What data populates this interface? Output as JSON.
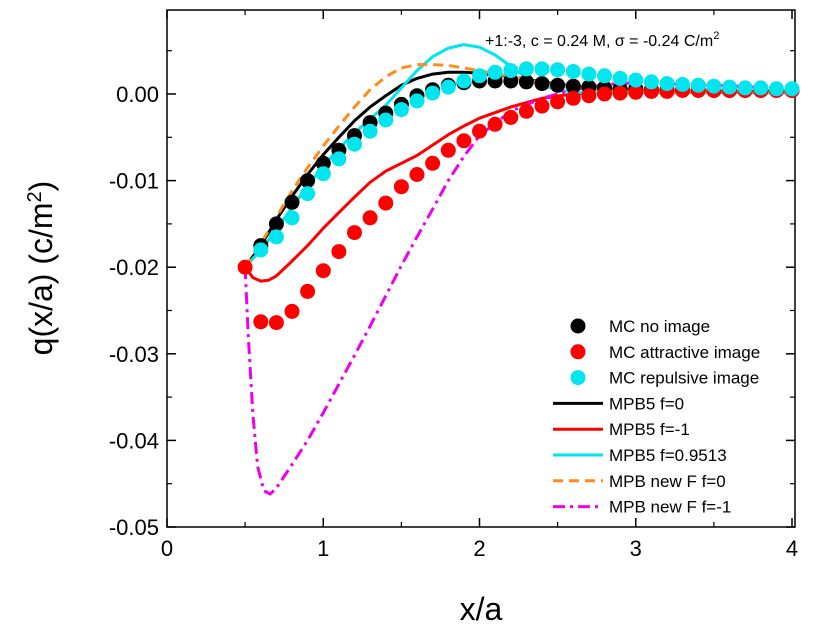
{
  "chart_data": {
    "type": "line",
    "title": "",
    "annotation": {
      "prefix": "+1:-3, c = 0.24 M, ",
      "sigma": "σ",
      "middle": " = -0.24 C/m",
      "sup": "2"
    },
    "xlabel": "x/a",
    "ylabel": {
      "main": "q(x/a) (c/m",
      "sup": "2",
      "end": ")"
    },
    "xlim": [
      0,
      4
    ],
    "ylim": [
      -0.05,
      0.008
    ],
    "xticks": [
      0,
      1,
      2,
      3,
      4
    ],
    "xtick_labels": [
      "0",
      "1",
      "2",
      "3",
      "4"
    ],
    "yticks": [
      0.0,
      -0.01,
      -0.02,
      -0.03,
      -0.04,
      -0.05
    ],
    "ytick_labels": [
      "0.00",
      "-0.01",
      "-0.02",
      "-0.03",
      "-0.04",
      "-0.05"
    ],
    "legend_position": "bottom-right",
    "series": [
      {
        "name": "MC no image",
        "kind": "scatter",
        "color": "#000000",
        "x": [
          0.6,
          0.7,
          0.8,
          0.9,
          1.0,
          1.1,
          1.2,
          1.3,
          1.4,
          1.5,
          1.6,
          1.7,
          1.8,
          1.9,
          2.0,
          2.1,
          2.2,
          2.3,
          2.4,
          2.5,
          2.6,
          2.7,
          2.8,
          2.9,
          3.0,
          3.1,
          3.2,
          3.3,
          3.4,
          3.5,
          3.6,
          3.7,
          3.8,
          3.9,
          4.0
        ],
        "y": [
          -0.0175,
          -0.015,
          -0.0125,
          -0.01,
          -0.008,
          -0.0065,
          -0.0048,
          -0.0033,
          -0.0022,
          -0.0012,
          -0.0002,
          0.0005,
          0.001,
          0.0013,
          0.0015,
          0.0015,
          0.0015,
          0.0014,
          0.0012,
          0.001,
          0.0009,
          0.0008,
          0.0007,
          0.0006,
          0.0006,
          0.0005,
          0.0005,
          0.0005,
          0.0005,
          0.0004,
          0.0004,
          0.0004,
          0.0004,
          0.0004,
          0.0004
        ]
      },
      {
        "name": "MC attractive image",
        "kind": "scatter",
        "color": "#ff0000",
        "x": [
          0.5,
          0.6,
          0.7,
          0.8,
          0.9,
          1.0,
          1.1,
          1.2,
          1.3,
          1.4,
          1.5,
          1.6,
          1.7,
          1.8,
          1.9,
          2.0,
          2.1,
          2.2,
          2.3,
          2.4,
          2.5,
          2.6,
          2.7,
          2.8,
          2.9,
          3.0,
          3.1,
          3.2,
          3.3,
          3.4,
          3.5,
          3.6,
          3.7,
          3.8,
          3.9,
          4.0
        ],
        "y": [
          -0.02,
          -0.0263,
          -0.0264,
          -0.0251,
          -0.0228,
          -0.0204,
          -0.0182,
          -0.016,
          -0.0143,
          -0.0126,
          -0.0107,
          -0.0093,
          -0.008,
          -0.0065,
          -0.0054,
          -0.0043,
          -0.0035,
          -0.0027,
          -0.002,
          -0.0014,
          -0.0009,
          -0.0005,
          -0.0002,
          0.0,
          0.0001,
          0.0002,
          0.0003,
          0.0003,
          0.0004,
          0.0004,
          0.0004,
          0.0004,
          0.0004,
          0.0004,
          0.0004,
          0.0004
        ]
      },
      {
        "name": "MC repulsive image",
        "kind": "scatter",
        "color": "#00e5ee",
        "x": [
          0.6,
          0.7,
          0.8,
          0.9,
          1.0,
          1.1,
          1.2,
          1.3,
          1.4,
          1.5,
          1.6,
          1.7,
          1.8,
          1.9,
          2.0,
          2.1,
          2.2,
          2.3,
          2.4,
          2.5,
          2.6,
          2.7,
          2.8,
          2.9,
          3.0,
          3.1,
          3.2,
          3.3,
          3.4,
          3.5,
          3.6,
          3.7,
          3.8,
          3.9,
          4.0
        ],
        "y": [
          -0.018,
          -0.0165,
          -0.0143,
          -0.0115,
          -0.0092,
          -0.0075,
          -0.0058,
          -0.0043,
          -0.003,
          -0.0018,
          -0.0008,
          0.0001,
          0.0008,
          0.0015,
          0.0021,
          0.0025,
          0.0027,
          0.0029,
          0.0029,
          0.0028,
          0.0026,
          0.0023,
          0.0021,
          0.0018,
          0.0016,
          0.0014,
          0.0012,
          0.0011,
          0.001,
          0.0009,
          0.0008,
          0.0007,
          0.0007,
          0.0006,
          0.0006
        ]
      },
      {
        "name": "MPB5 f=0",
        "kind": "line",
        "dash": "solid",
        "color": "#000000",
        "x": [
          0.5,
          0.6,
          0.7,
          0.8,
          0.9,
          1.0,
          1.1,
          1.2,
          1.3,
          1.4,
          1.5,
          1.6,
          1.7,
          1.8,
          1.9,
          2.0,
          2.2,
          2.4,
          2.6,
          2.8,
          3.0,
          3.5,
          4.0
        ],
        "y": [
          -0.02,
          -0.0175,
          -0.0145,
          -0.0118,
          -0.0093,
          -0.007,
          -0.005,
          -0.0031,
          -0.0015,
          -0.0002,
          0.001,
          0.0018,
          0.0023,
          0.0025,
          0.0025,
          0.0024,
          0.002,
          0.0014,
          0.0009,
          0.0006,
          0.0004,
          0.0002,
          0.0002
        ]
      },
      {
        "name": "MPB5 f=-1",
        "kind": "line",
        "dash": "solid",
        "color": "#ff0000",
        "x": [
          0.5,
          0.55,
          0.6,
          0.65,
          0.7,
          0.8,
          0.9,
          1.0,
          1.1,
          1.2,
          1.3,
          1.4,
          1.5,
          1.6,
          1.7,
          1.8,
          1.9,
          2.0,
          2.2,
          2.4,
          2.6,
          2.8,
          3.0,
          3.5,
          4.0
        ],
        "y": [
          -0.02,
          -0.0212,
          -0.0216,
          -0.0215,
          -0.021,
          -0.0193,
          -0.0175,
          -0.0155,
          -0.0137,
          -0.0119,
          -0.0102,
          -0.0089,
          -0.008,
          -0.0071,
          -0.0059,
          -0.0047,
          -0.0037,
          -0.0028,
          -0.0015,
          -0.0005,
          0.0,
          0.0002,
          0.0003,
          0.0003,
          0.0003
        ]
      },
      {
        "name": "MPB5 f=0.9513",
        "kind": "line",
        "dash": "solid",
        "color": "#00e5ee",
        "x": [
          0.5,
          0.6,
          0.7,
          0.8,
          0.9,
          1.0,
          1.1,
          1.2,
          1.3,
          1.4,
          1.5,
          1.6,
          1.7,
          1.8,
          1.9,
          2.0,
          2.1,
          2.2,
          2.3,
          2.4,
          2.5,
          2.6,
          2.8,
          3.0,
          3.5,
          4.0
        ],
        "y": [
          -0.02,
          -0.018,
          -0.0157,
          -0.0131,
          -0.0106,
          -0.0083,
          -0.0063,
          -0.0045,
          -0.0029,
          -0.0013,
          0.0007,
          0.0027,
          0.0043,
          0.0053,
          0.0057,
          0.0054,
          0.0045,
          0.0032,
          0.0019,
          0.001,
          0.0005,
          0.0002,
          0.0001,
          0.0001,
          0.0002,
          0.0002
        ]
      },
      {
        "name": "MPB new F f=0",
        "kind": "line",
        "dash": "dash",
        "color": "#ff8c1a",
        "x": [
          0.5,
          0.6,
          0.7,
          0.8,
          0.9,
          1.0,
          1.1,
          1.2,
          1.3,
          1.4,
          1.5,
          1.6,
          1.7,
          1.8,
          1.9,
          2.0,
          2.2,
          2.4,
          2.6,
          2.8,
          3.0,
          3.5,
          4.0
        ],
        "y": [
          -0.02,
          -0.0173,
          -0.0142,
          -0.0112,
          -0.0085,
          -0.006,
          -0.0037,
          -0.0015,
          0.0005,
          0.002,
          0.003,
          0.0034,
          0.0034,
          0.0033,
          0.003,
          0.0027,
          0.002,
          0.0013,
          0.0008,
          0.0005,
          0.0003,
          0.0002,
          0.0002
        ]
      },
      {
        "name": "MPB new F f=-1",
        "kind": "line",
        "dash": "dashdot",
        "color": "#ee00ee",
        "x": [
          0.5,
          0.52,
          0.55,
          0.58,
          0.62,
          0.66,
          0.7,
          0.8,
          0.9,
          1.0,
          1.1,
          1.2,
          1.3,
          1.4,
          1.5,
          1.6,
          1.7,
          1.8,
          1.9,
          2.0,
          2.2,
          2.4,
          2.6,
          2.8,
          3.0,
          3.5,
          4.0
        ],
        "y": [
          -0.02,
          -0.028,
          -0.037,
          -0.043,
          -0.0458,
          -0.0462,
          -0.0455,
          -0.0428,
          -0.04,
          -0.0368,
          -0.0335,
          -0.0302,
          -0.0268,
          -0.0233,
          -0.0198,
          -0.0165,
          -0.0133,
          -0.01,
          -0.0072,
          -0.0048,
          -0.002,
          -0.0005,
          0.0005,
          0.0011,
          0.0013,
          0.001,
          0.0006
        ]
      }
    ]
  }
}
